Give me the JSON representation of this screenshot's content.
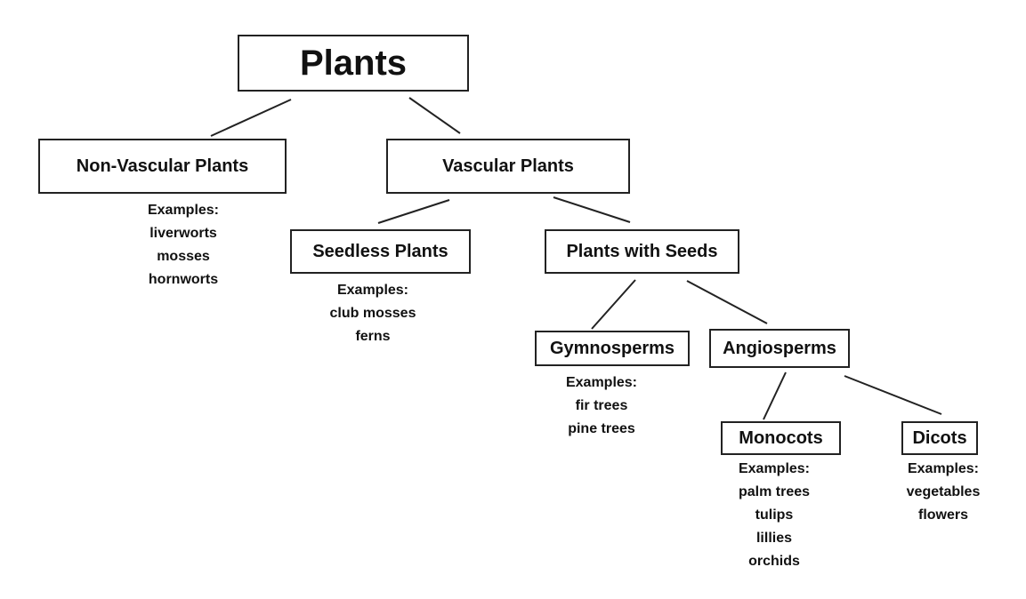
{
  "nodes": {
    "plants": "Plants",
    "non_vascular": "Non-Vascular Plants",
    "vascular": "Vascular Plants",
    "seedless": "Seedless Plants",
    "with_seeds": "Plants with Seeds",
    "gymnosperms": "Gymnosperms",
    "angiosperms": "Angiosperms",
    "monocots": "Monocots",
    "dicots": "Dicots"
  },
  "examples": {
    "non_vascular": {
      "heading": "Examples:",
      "items": [
        "liverworts",
        "mosses",
        "hornworts"
      ]
    },
    "seedless": {
      "heading": "Examples:",
      "items": [
        "club mosses",
        "ferns"
      ]
    },
    "gymnosperms": {
      "heading": "Examples:",
      "items": [
        "fir trees",
        "pine trees"
      ]
    },
    "monocots": {
      "heading": "Examples:",
      "items": [
        "palm trees",
        "tulips",
        "lillies",
        "orchids"
      ]
    },
    "dicots": {
      "heading": "Examples:",
      "items": [
        "vegetables",
        "flowers"
      ]
    }
  }
}
